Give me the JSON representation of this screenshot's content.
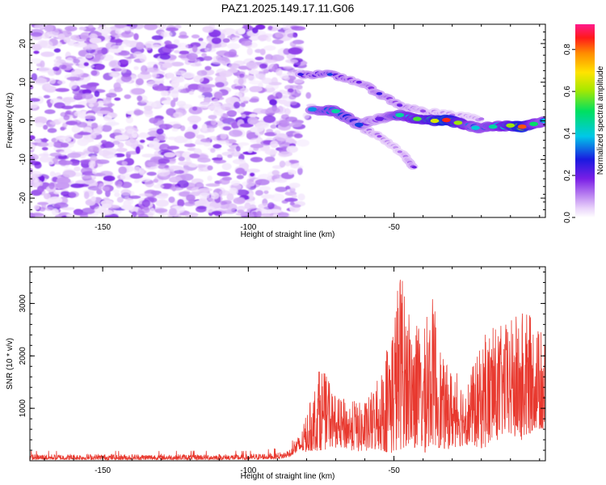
{
  "title": "PAZ1.2025.149.17.11.G06",
  "chart_data": [
    {
      "type": "heatmap",
      "xlabel": "Height of straight line (km)",
      "ylabel": "Frequency (Hz)",
      "xlim": [
        -175,
        2
      ],
      "ylim": [
        -25,
        25
      ],
      "xticks": [
        -150,
        -100,
        -50
      ],
      "xtick_labels": [
        "-150",
        "-100",
        "-50"
      ],
      "yticks": [
        -20,
        -10,
        0,
        10,
        20
      ],
      "ytick_labels": [
        "-20",
        "-10",
        "0",
        "10",
        "20"
      ],
      "colorbar": {
        "label": "Normalized spectral amplitude",
        "range": [
          0,
          0.92
        ],
        "ticks": [
          0.0,
          0.2,
          0.4,
          0.6,
          0.8
        ],
        "tick_labels": [
          "0.0",
          "0.2",
          "0.4",
          "0.6",
          "0.8"
        ],
        "colormap": "rainbow (purple-blue-cyan-green-yellow-orange-red-magenta)"
      },
      "noise_region": {
        "x_range": [
          -175,
          -82
        ],
        "y_range": [
          -25,
          25
        ],
        "amplitude_range": [
          0.02,
          0.2
        ]
      },
      "main_signal": {
        "description": "Doppler track: ~2 Hz near -80 km, decreasing to ~ -2 Hz near 0 km",
        "points": [
          {
            "x": -78,
            "y": 3,
            "amp": 0.35
          },
          {
            "x": -70,
            "y": 2.5,
            "amp": 0.45
          },
          {
            "x": -62,
            "y": -1,
            "amp": 0.3
          },
          {
            "x": -55,
            "y": 0.5,
            "amp": 0.2
          },
          {
            "x": -48,
            "y": 1.5,
            "amp": 0.45
          },
          {
            "x": -42,
            "y": 0.5,
            "amp": 0.55
          },
          {
            "x": -36,
            "y": 0,
            "amp": 0.65
          },
          {
            "x": -32,
            "y": 0.2,
            "amp": 0.85
          },
          {
            "x": -28,
            "y": -0.5,
            "amp": 0.6
          },
          {
            "x": -22,
            "y": -1.8,
            "amp": 0.4
          },
          {
            "x": -16,
            "y": -1.5,
            "amp": 0.45
          },
          {
            "x": -10,
            "y": -1.2,
            "amp": 0.6
          },
          {
            "x": -6,
            "y": -1.5,
            "amp": 0.82
          },
          {
            "x": -2,
            "y": -0.8,
            "amp": 0.5
          },
          {
            "x": 2,
            "y": 0,
            "amp": 0.4
          }
        ]
      },
      "secondary_signal": {
        "description": "fainter upper branch from ~13 Hz near -82 km curving down to ~0 Hz near -20 km",
        "points": [
          {
            "x": -82,
            "y": 12,
            "amp": 0.25
          },
          {
            "x": -72,
            "y": 12,
            "amp": 0.3
          },
          {
            "x": -62,
            "y": 10,
            "amp": 0.2
          },
          {
            "x": -55,
            "y": 7,
            "amp": 0.25
          },
          {
            "x": -48,
            "y": 4,
            "amp": 0.2
          },
          {
            "x": -40,
            "y": 2.5,
            "amp": 0.15
          },
          {
            "x": -30,
            "y": 1.5,
            "amp": 0.12
          },
          {
            "x": -20,
            "y": 0.5,
            "amp": 0.12
          }
        ]
      },
      "lower_branch": {
        "description": "faint branch descending from ~0 Hz near -62 km to ~ -12 Hz near -42 km",
        "points": [
          {
            "x": -62,
            "y": -1.5,
            "amp": 0.18
          },
          {
            "x": -55,
            "y": -4,
            "amp": 0.15
          },
          {
            "x": -48,
            "y": -8,
            "amp": 0.12
          },
          {
            "x": -43,
            "y": -12,
            "amp": 0.2
          }
        ]
      }
    },
    {
      "type": "line",
      "xlabel": "Height of straight line (km)",
      "ylabel": "SNR (10 * v/v)",
      "xlim": [
        -175,
        2
      ],
      "ylim": [
        0,
        3700
      ],
      "xticks": [
        -150,
        -100,
        -50
      ],
      "xtick_labels": [
        "-150",
        "-100",
        "-50"
      ],
      "yticks": [
        1000,
        2000,
        3000
      ],
      "ytick_labels": [
        "1000",
        "2000",
        "3000"
      ],
      "line_color": "#e8392f",
      "envelope": [
        {
          "x": -175,
          "low": 20,
          "high": 200
        },
        {
          "x": -100,
          "low": 20,
          "high": 200
        },
        {
          "x": -88,
          "low": 40,
          "high": 260
        },
        {
          "x": -82,
          "low": 150,
          "high": 500
        },
        {
          "x": -75,
          "low": 200,
          "high": 1850
        },
        {
          "x": -70,
          "low": 250,
          "high": 1200
        },
        {
          "x": -60,
          "low": 150,
          "high": 1100
        },
        {
          "x": -55,
          "low": 200,
          "high": 1600
        },
        {
          "x": -50,
          "low": 100,
          "high": 2900
        },
        {
          "x": -48,
          "low": 200,
          "high": 3700
        },
        {
          "x": -45,
          "low": 300,
          "high": 2800
        },
        {
          "x": -40,
          "low": 100,
          "high": 2400
        },
        {
          "x": -37,
          "low": 300,
          "high": 3200
        },
        {
          "x": -33,
          "low": 200,
          "high": 1900
        },
        {
          "x": -25,
          "low": 300,
          "high": 1500
        },
        {
          "x": -18,
          "low": 200,
          "high": 2500
        },
        {
          "x": -12,
          "low": 500,
          "high": 2600
        },
        {
          "x": -6,
          "low": 300,
          "high": 2900
        },
        {
          "x": -2,
          "low": 600,
          "high": 2700
        },
        {
          "x": 2,
          "low": 500,
          "high": 2300
        }
      ]
    }
  ]
}
